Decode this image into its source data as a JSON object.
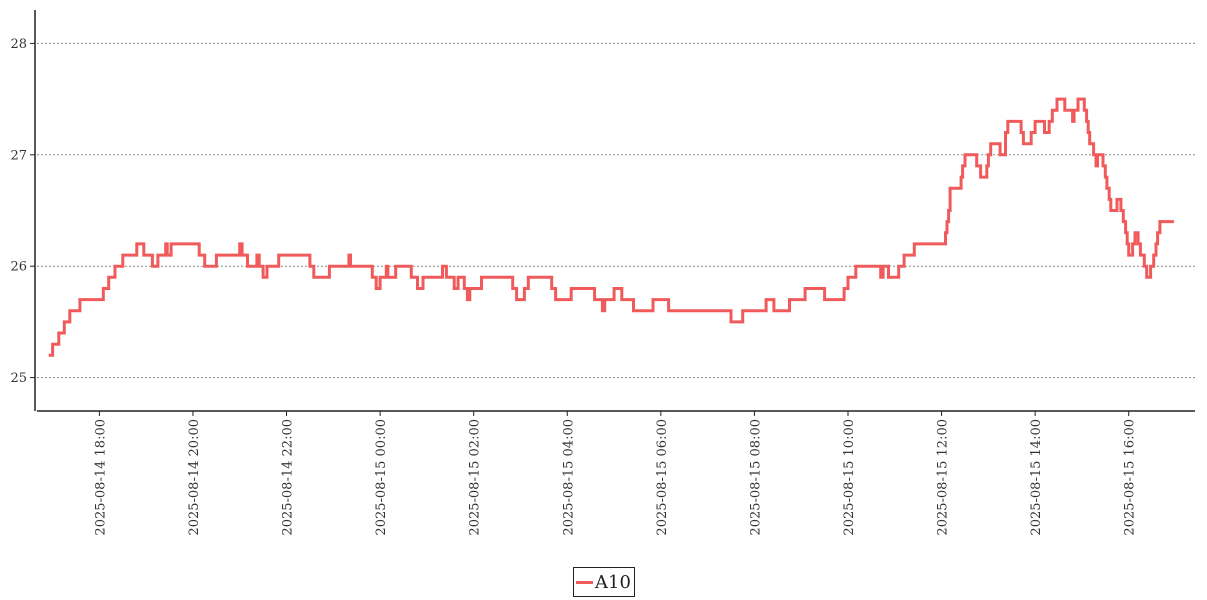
{
  "chart_data": {
    "type": "line",
    "title": "",
    "xlabel": "",
    "ylabel": "",
    "x_range": [
      "2025-08-14 16:40",
      "2025-08-15 17:25"
    ],
    "ylim": [
      24.7,
      28.3
    ],
    "yticks": [
      25,
      26,
      27,
      28
    ],
    "ytick_labels": [
      "25",
      "26",
      "27",
      "28"
    ],
    "xticks": [
      "2025-08-14 18:00",
      "2025-08-14 20:00",
      "2025-08-14 22:00",
      "2025-08-15 00:00",
      "2025-08-15 02:00",
      "2025-08-15 04:00",
      "2025-08-15 06:00",
      "2025-08-15 08:00",
      "2025-08-15 10:00",
      "2025-08-15 12:00",
      "2025-08-15 14:00",
      "2025-08-15 16:00"
    ],
    "xtick_labels": [
      "2025-08-14 18:00",
      "2025-08-14 20:00",
      "2025-08-14 22:00",
      "2025-08-15 00:00",
      "2025-08-15 02:00",
      "2025-08-15 04:00",
      "2025-08-15 06:00",
      "2025-08-15 08:00",
      "2025-08-15 10:00",
      "2025-08-15 12:00",
      "2025-08-15 14:00",
      "2025-08-15 16:00"
    ],
    "grid": "horizontal-dotted",
    "legend_position": "bottom-center",
    "series": [
      {
        "name": "A10",
        "color": "#f05a5a",
        "step": true,
        "points": [
          [
            "2025-08-14 16:55",
            25.2
          ],
          [
            "2025-08-14 17:00",
            25.3
          ],
          [
            "2025-08-14 17:08",
            25.4
          ],
          [
            "2025-08-14 17:15",
            25.5
          ],
          [
            "2025-08-14 17:22",
            25.6
          ],
          [
            "2025-08-14 17:35",
            25.7
          ],
          [
            "2025-08-14 18:05",
            25.8
          ],
          [
            "2025-08-14 18:12",
            25.9
          ],
          [
            "2025-08-14 18:20",
            26.0
          ],
          [
            "2025-08-14 18:30",
            26.1
          ],
          [
            "2025-08-14 18:48",
            26.2
          ],
          [
            "2025-08-14 18:57",
            26.1
          ],
          [
            "2025-08-14 19:08",
            26.0
          ],
          [
            "2025-08-14 19:15",
            26.1
          ],
          [
            "2025-08-14 19:25",
            26.2
          ],
          [
            "2025-08-14 19:27",
            26.1
          ],
          [
            "2025-08-14 19:32",
            26.2
          ],
          [
            "2025-08-14 19:38",
            26.2
          ],
          [
            "2025-08-14 20:08",
            26.1
          ],
          [
            "2025-08-14 20:15",
            26.0
          ],
          [
            "2025-08-14 20:30",
            26.1
          ],
          [
            "2025-08-14 21:00",
            26.2
          ],
          [
            "2025-08-14 21:03",
            26.1
          ],
          [
            "2025-08-14 21:10",
            26.0
          ],
          [
            "2025-08-14 21:22",
            26.1
          ],
          [
            "2025-08-14 21:25",
            26.0
          ],
          [
            "2025-08-14 21:30",
            25.9
          ],
          [
            "2025-08-14 21:35",
            26.0
          ],
          [
            "2025-08-14 21:50",
            26.1
          ],
          [
            "2025-08-14 22:30",
            26.0
          ],
          [
            "2025-08-14 22:35",
            25.9
          ],
          [
            "2025-08-14 22:55",
            26.0
          ],
          [
            "2025-08-14 23:20",
            26.1
          ],
          [
            "2025-08-14 23:22",
            26.0
          ],
          [
            "2025-08-14 23:50",
            25.9
          ],
          [
            "2025-08-14 23:55",
            25.8
          ],
          [
            "2025-08-15 00:00",
            25.9
          ],
          [
            "2025-08-15 00:08",
            26.0
          ],
          [
            "2025-08-15 00:10",
            25.9
          ],
          [
            "2025-08-15 00:20",
            26.0
          ],
          [
            "2025-08-15 00:40",
            25.9
          ],
          [
            "2025-08-15 00:48",
            25.8
          ],
          [
            "2025-08-15 00:55",
            25.9
          ],
          [
            "2025-08-15 01:20",
            26.0
          ],
          [
            "2025-08-15 01:25",
            25.9
          ],
          [
            "2025-08-15 01:35",
            25.8
          ],
          [
            "2025-08-15 01:40",
            25.9
          ],
          [
            "2025-08-15 01:48",
            25.8
          ],
          [
            "2025-08-15 01:52",
            25.7
          ],
          [
            "2025-08-15 01:55",
            25.8
          ],
          [
            "2025-08-15 02:10",
            25.9
          ],
          [
            "2025-08-15 02:50",
            25.8
          ],
          [
            "2025-08-15 02:55",
            25.7
          ],
          [
            "2025-08-15 03:05",
            25.8
          ],
          [
            "2025-08-15 03:10",
            25.9
          ],
          [
            "2025-08-15 03:40",
            25.8
          ],
          [
            "2025-08-15 03:45",
            25.7
          ],
          [
            "2025-08-15 04:05",
            25.8
          ],
          [
            "2025-08-15 04:35",
            25.7
          ],
          [
            "2025-08-15 04:45",
            25.6
          ],
          [
            "2025-08-15 04:48",
            25.7
          ],
          [
            "2025-08-15 05:00",
            25.8
          ],
          [
            "2025-08-15 05:10",
            25.7
          ],
          [
            "2025-08-15 05:25",
            25.6
          ],
          [
            "2025-08-15 05:50",
            25.7
          ],
          [
            "2025-08-15 06:10",
            25.6
          ],
          [
            "2025-08-15 07:30",
            25.5
          ],
          [
            "2025-08-15 07:45",
            25.6
          ],
          [
            "2025-08-15 08:15",
            25.7
          ],
          [
            "2025-08-15 08:25",
            25.6
          ],
          [
            "2025-08-15 08:45",
            25.7
          ],
          [
            "2025-08-15 09:05",
            25.8
          ],
          [
            "2025-08-15 09:30",
            25.7
          ],
          [
            "2025-08-15 09:55",
            25.8
          ],
          [
            "2025-08-15 10:00",
            25.9
          ],
          [
            "2025-08-15 10:10",
            26.0
          ],
          [
            "2025-08-15 10:42",
            25.9
          ],
          [
            "2025-08-15 10:45",
            26.0
          ],
          [
            "2025-08-15 10:52",
            25.9
          ],
          [
            "2025-08-15 11:05",
            26.0
          ],
          [
            "2025-08-15 11:12",
            26.1
          ],
          [
            "2025-08-15 11:25",
            26.2
          ],
          [
            "2025-08-15 12:05",
            26.3
          ],
          [
            "2025-08-15 12:07",
            26.4
          ],
          [
            "2025-08-15 12:09",
            26.5
          ],
          [
            "2025-08-15 12:11",
            26.7
          ],
          [
            "2025-08-15 12:25",
            26.8
          ],
          [
            "2025-08-15 12:27",
            26.9
          ],
          [
            "2025-08-15 12:30",
            27.0
          ],
          [
            "2025-08-15 12:45",
            26.9
          ],
          [
            "2025-08-15 12:50",
            26.8
          ],
          [
            "2025-08-15 12:58",
            26.9
          ],
          [
            "2025-08-15 13:00",
            27.0
          ],
          [
            "2025-08-15 13:03",
            27.1
          ],
          [
            "2025-08-15 13:15",
            27.0
          ],
          [
            "2025-08-15 13:22",
            27.2
          ],
          [
            "2025-08-15 13:25",
            27.3
          ],
          [
            "2025-08-15 13:42",
            27.2
          ],
          [
            "2025-08-15 13:45",
            27.1
          ],
          [
            "2025-08-15 13:55",
            27.2
          ],
          [
            "2025-08-15 14:00",
            27.3
          ],
          [
            "2025-08-15 14:12",
            27.2
          ],
          [
            "2025-08-15 14:18",
            27.3
          ],
          [
            "2025-08-15 14:22",
            27.4
          ],
          [
            "2025-08-15 14:28",
            27.5
          ],
          [
            "2025-08-15 14:38",
            27.4
          ],
          [
            "2025-08-15 14:48",
            27.3
          ],
          [
            "2025-08-15 14:50",
            27.4
          ],
          [
            "2025-08-15 14:55",
            27.5
          ],
          [
            "2025-08-15 15:03",
            27.4
          ],
          [
            "2025-08-15 15:06",
            27.3
          ],
          [
            "2025-08-15 15:08",
            27.2
          ],
          [
            "2025-08-15 15:10",
            27.1
          ],
          [
            "2025-08-15 15:15",
            27.0
          ],
          [
            "2025-08-15 15:18",
            26.9
          ],
          [
            "2025-08-15 15:20",
            27.0
          ],
          [
            "2025-08-15 15:27",
            26.9
          ],
          [
            "2025-08-15 15:30",
            26.8
          ],
          [
            "2025-08-15 15:32",
            26.7
          ],
          [
            "2025-08-15 15:35",
            26.6
          ],
          [
            "2025-08-15 15:37",
            26.5
          ],
          [
            "2025-08-15 15:45",
            26.6
          ],
          [
            "2025-08-15 15:50",
            26.5
          ],
          [
            "2025-08-15 15:53",
            26.4
          ],
          [
            "2025-08-15 15:56",
            26.3
          ],
          [
            "2025-08-15 15:58",
            26.2
          ],
          [
            "2025-08-15 16:00",
            26.1
          ],
          [
            "2025-08-15 16:05",
            26.2
          ],
          [
            "2025-08-15 16:08",
            26.3
          ],
          [
            "2025-08-15 16:12",
            26.2
          ],
          [
            "2025-08-15 16:15",
            26.1
          ],
          [
            "2025-08-15 16:20",
            26.0
          ],
          [
            "2025-08-15 16:23",
            25.9
          ],
          [
            "2025-08-15 16:28",
            26.0
          ],
          [
            "2025-08-15 16:32",
            26.1
          ],
          [
            "2025-08-15 16:35",
            26.2
          ],
          [
            "2025-08-15 16:37",
            26.3
          ],
          [
            "2025-08-15 16:40",
            26.4
          ],
          [
            "2025-08-15 16:58",
            26.4
          ]
        ]
      }
    ]
  }
}
